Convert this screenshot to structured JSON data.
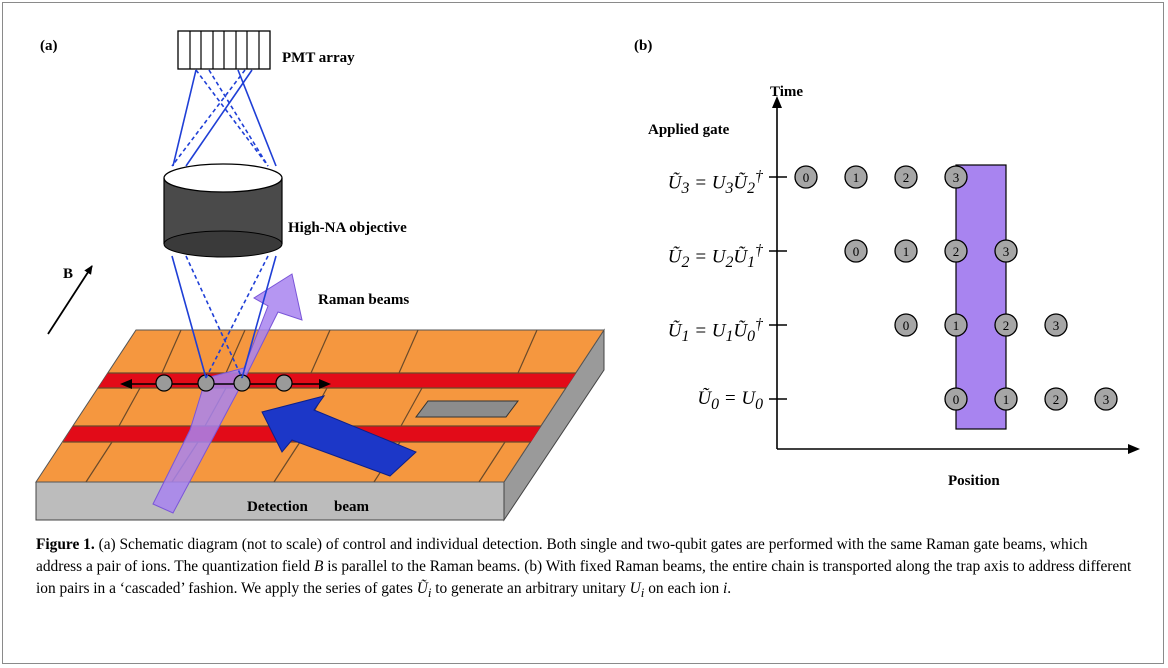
{
  "panel_a": {
    "label": "(a)",
    "pmt_label": "PMT array",
    "objective_label": "High-NA objective",
    "raman_label": "Raman beams",
    "b_label": "B",
    "detection_label_1": "Detection",
    "detection_label_2": "beam"
  },
  "panel_b": {
    "label": "(b)",
    "y_axis_label": "Time",
    "x_axis_label": "Position",
    "gate_header": "Applied gate",
    "rows": [
      {
        "eq_html": "Ũ<sub>3</sub> = U<sub>3</sub>Ũ<sub>2</sub><sup>†</sup>",
        "ions": [
          "0",
          "1",
          "2",
          "3"
        ]
      },
      {
        "eq_html": "Ũ<sub>2</sub> = U<sub>2</sub>Ũ<sub>1</sub><sup>†</sup>",
        "ions": [
          "0",
          "1",
          "2",
          "3"
        ]
      },
      {
        "eq_html": "Ũ<sub>1</sub> = U<sub>1</sub>Ũ<sub>0</sub><sup>†</sup>",
        "ions": [
          "0",
          "1",
          "2",
          "3"
        ]
      },
      {
        "eq_html": "Ũ<sub>0</sub> = U<sub>0</sub>",
        "ions": [
          "0",
          "1",
          "2",
          "3"
        ]
      }
    ]
  },
  "caption": {
    "label": "Figure 1.",
    "text_1": " (a) Schematic diagram (not to scale) of control and individual detection. Both single and two-qubit gates are performed with the same Raman gate beams, which address a pair of ions. The quantization field ",
    "field_symbol": "B",
    "text_2": " is parallel to the Raman beams. (b) With fixed Raman beams, the entire chain is transported along the trap axis to address different ion pairs in a ‘cascaded’ fashion. We apply the series of gates ",
    "gate_symbol": "Ũ",
    "gate_index": "i",
    "text_3": " to generate an arbitrary unitary ",
    "unitary_symbol": "U",
    "unitary_index": "i",
    "text_4": " on each ion ",
    "ion_symbol": "i",
    "text_5": "."
  }
}
